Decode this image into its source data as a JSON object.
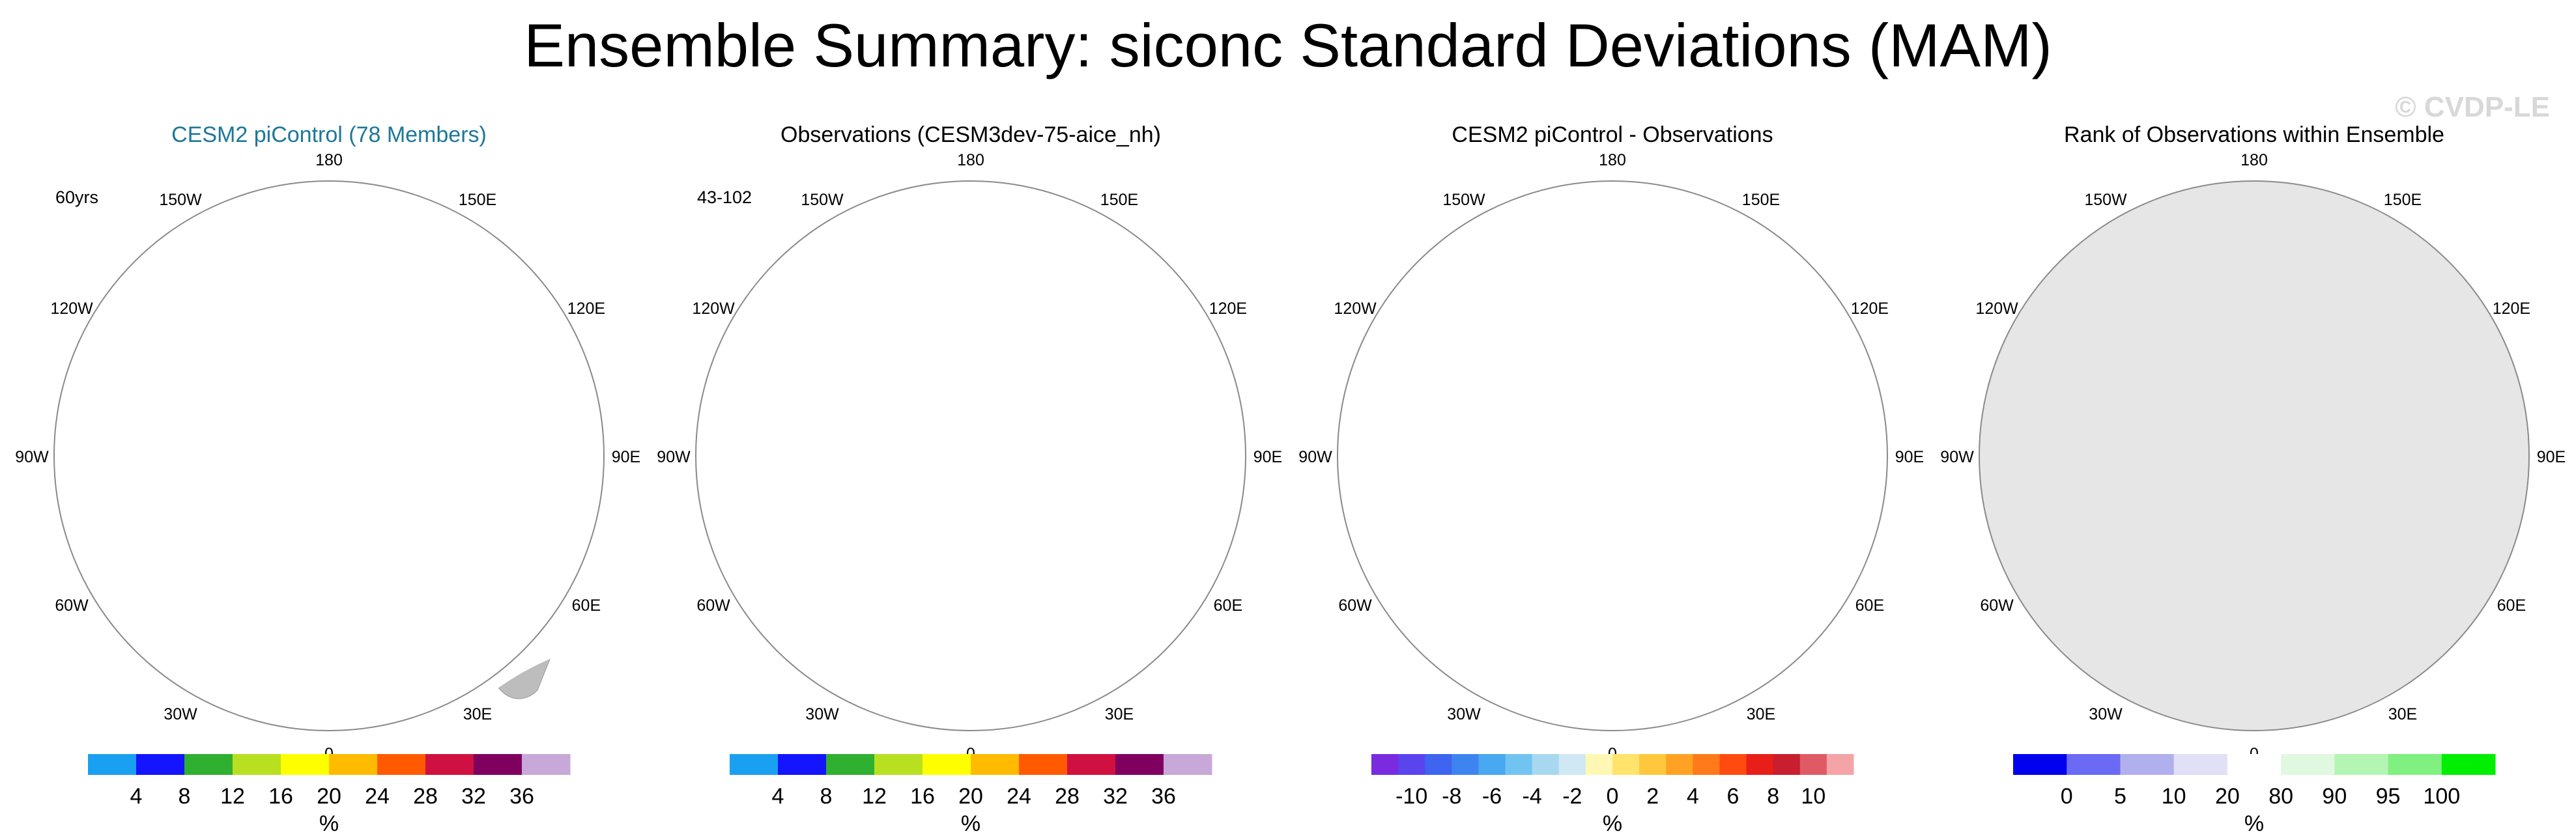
{
  "title": "Ensemble Summary: siconc Standard Deviations (MAM)",
  "watermark": "© CVDP-LE",
  "colors": {
    "land": "#bdbdbd",
    "title_accent": "#1c7898",
    "std_palette": [
      "#1aa0f0",
      "#1414ff",
      "#30b030",
      "#b8e020",
      "#ffff00",
      "#ffbb00",
      "#ff5a00",
      "#d01040",
      "#800060",
      "#c8a8d8"
    ],
    "diff_palette": [
      "#7a2be0",
      "#5a44ee",
      "#3e64f0",
      "#3e84f0",
      "#48a8f0",
      "#72c4f0",
      "#a8d8f0",
      "#d0e8f4",
      "#fff8b4",
      "#ffe36a",
      "#ffc83c",
      "#ffa224",
      "#ff7a18",
      "#ff4a10",
      "#e81e18",
      "#c81e30",
      "#e05a66",
      "#f4a4a6"
    ],
    "rank_palette": [
      "#0000ee",
      "#6a6af4",
      "#b0b0ee",
      "#e0e0f6",
      "#ffffff",
      "#e0f8e0",
      "#b4f4b4",
      "#80f080",
      "#00ee00"
    ]
  },
  "chart_data": [
    {
      "type": "heatmap",
      "projection": "north-polar-stereographic",
      "title": "CESM2 piControl (78 Members)",
      "left_label": "60yrs",
      "lon_labels": [
        "180",
        "150W",
        "150E",
        "120W",
        "120E",
        "90W",
        "90E",
        "60W",
        "60E",
        "30W",
        "30E",
        "0"
      ],
      "colorbar": {
        "tick_labels": [
          "4",
          "8",
          "12",
          "16",
          "20",
          "24",
          "28",
          "32",
          "36"
        ],
        "units": "%",
        "palette": "std_palette"
      },
      "style": "std"
    },
    {
      "type": "heatmap",
      "projection": "north-polar-stereographic",
      "title": "Observations (CESM3dev-75-aice_nh)",
      "left_label": "43-102",
      "lon_labels": [
        "180",
        "150W",
        "150E",
        "120W",
        "120E",
        "90W",
        "90E",
        "60W",
        "60E",
        "30W",
        "30E",
        "0"
      ],
      "colorbar": {
        "tick_labels": [
          "4",
          "8",
          "12",
          "16",
          "20",
          "24",
          "28",
          "32",
          "36"
        ],
        "units": "%",
        "palette": "std_palette"
      },
      "style": "obs"
    },
    {
      "type": "heatmap",
      "projection": "north-polar-stereographic",
      "title": "CESM2 piControl - Observations",
      "left_label": "",
      "lon_labels": [
        "180",
        "150W",
        "150E",
        "120W",
        "120E",
        "90W",
        "90E",
        "60W",
        "60E",
        "30W",
        "30E",
        "0"
      ],
      "colorbar": {
        "tick_labels": [
          "-10",
          "-8",
          "-6",
          "-4",
          "-2",
          "0",
          "2",
          "4",
          "6",
          "8",
          "10"
        ],
        "units": "%",
        "palette": "diff_palette"
      },
      "style": "diff"
    },
    {
      "type": "heatmap",
      "projection": "north-polar-stereographic",
      "title": "Rank of Observations within Ensemble",
      "left_label": "",
      "lon_labels": [
        "180",
        "150W",
        "150E",
        "120W",
        "120E",
        "90W",
        "90E",
        "60W",
        "60E",
        "30W",
        "30E",
        "0"
      ],
      "colorbar": {
        "tick_labels": [
          "0",
          "5",
          "10",
          "20",
          "80",
          "90",
          "95",
          "100"
        ],
        "units": "%",
        "palette": "rank_palette"
      },
      "style": "rank"
    }
  ]
}
